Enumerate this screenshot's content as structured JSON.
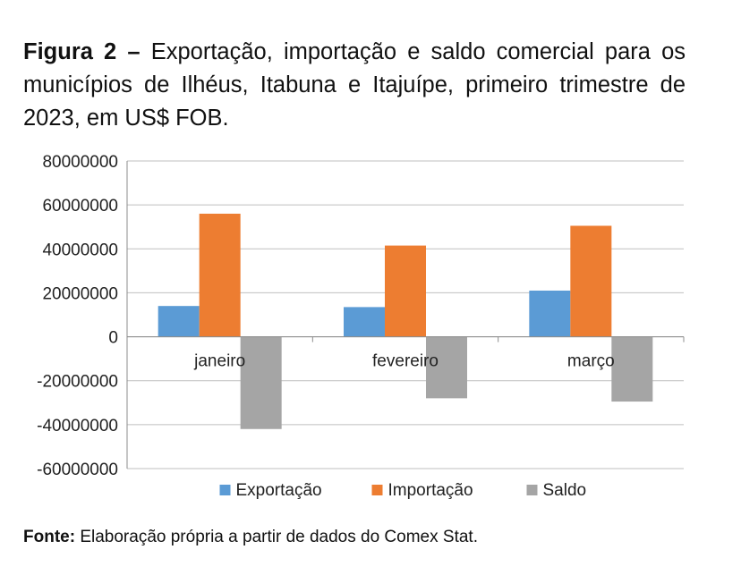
{
  "caption": {
    "label": "Figura 2 –",
    "text": "Exportação, importação e saldo comercial para os municípios de Ilhéus, Itabuna e Itajuípe, primeiro trimestre de 2023, em US$ FOB."
  },
  "chart_data": {
    "type": "bar",
    "categories": [
      "janeiro",
      "fevereiro",
      "março"
    ],
    "series": [
      {
        "name": "Exportação",
        "color": "#5b9bd5",
        "values": [
          14000000,
          13500000,
          21000000
        ]
      },
      {
        "name": "Importação",
        "color": "#ed7d31",
        "values": [
          56000000,
          41500000,
          50500000
        ]
      },
      {
        "name": "Saldo",
        "color": "#a5a5a5",
        "values": [
          -42000000,
          -28000000,
          -29500000
        ]
      }
    ],
    "yticks": [
      "80000000",
      "60000000",
      "40000000",
      "20000000",
      "0",
      "-20000000",
      "-40000000",
      "-60000000"
    ],
    "ylim": [
      -60000000,
      80000000
    ],
    "grid": true,
    "legend": "bottom"
  },
  "source": {
    "label": "Fonte:",
    "text": "Elaboração própria a partir de dados do Comex Stat."
  }
}
